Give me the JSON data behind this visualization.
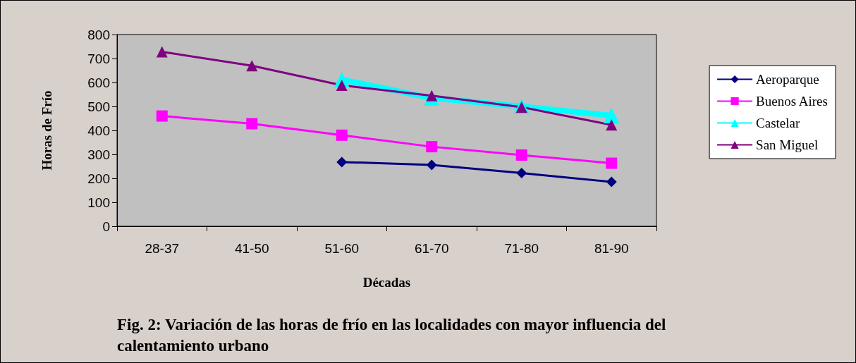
{
  "chart_data": {
    "type": "line",
    "title": "Fig. 2: Variación de las horas de frío en las localidades con mayor influencia del calentamiento urbano",
    "xlabel": "Décadas",
    "ylabel": "Horas de Frío",
    "categories": [
      "28-37",
      "41-50",
      "51-60",
      "61-70",
      "71-80",
      "81-90"
    ],
    "series": [
      {
        "name": "Aeroparque",
        "color": "#000080",
        "marker": "diamond",
        "values": [
          null,
          null,
          268,
          256,
          222,
          185
        ]
      },
      {
        "name": "Buenos Aires",
        "color": "#ff00ff",
        "marker": "square",
        "values": [
          460,
          428,
          380,
          332,
          297,
          263
        ]
      },
      {
        "name": "Castelar",
        "color": "#00ffff",
        "marker": "triangle",
        "values": [
          null,
          null,
          612,
          535,
          500,
          462
        ]
      },
      {
        "name": "San Miguel",
        "color": "#800080",
        "marker": "triangle",
        "values": [
          728,
          670,
          588,
          545,
          497,
          423
        ]
      }
    ],
    "ylim": [
      0,
      800
    ],
    "yticks": [
      0,
      100,
      200,
      300,
      400,
      500,
      600,
      700,
      800
    ],
    "grid": false,
    "legend": "right"
  }
}
